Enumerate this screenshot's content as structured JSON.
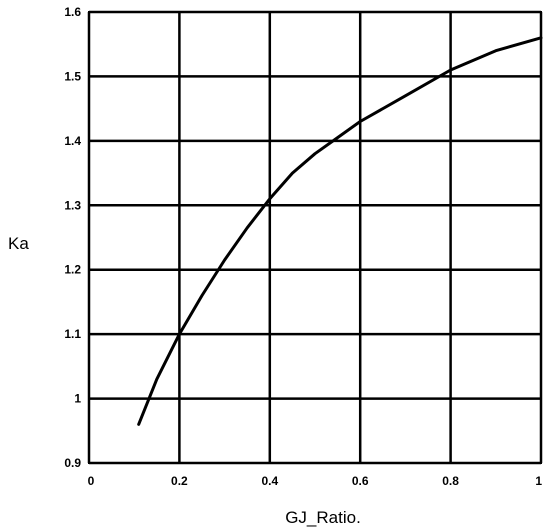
{
  "chart_data": {
    "type": "line",
    "title": "",
    "xlabel": "GJ_Ratio.",
    "ylabel": "Ka",
    "xlim": [
      0,
      1
    ],
    "ylim": [
      0.9,
      1.6
    ],
    "grid": true,
    "x_ticks": [
      0,
      0.2,
      0.4,
      0.6,
      0.8,
      1
    ],
    "x_tick_labels": [
      "0",
      "0.2",
      "0.4",
      "0.6",
      "0.8",
      "1"
    ],
    "y_ticks": [
      0.9,
      1,
      1.1,
      1.2,
      1.3,
      1.4,
      1.5,
      1.6
    ],
    "y_tick_labels": [
      "0.9",
      "1",
      "1.1",
      "1.2",
      "1.3",
      "1.4",
      "1.5",
      "1.6"
    ],
    "series": [
      {
        "x": [
          0.11,
          0.15,
          0.2,
          0.25,
          0.3,
          0.35,
          0.4,
          0.45,
          0.5,
          0.55,
          0.6,
          0.7,
          0.8,
          0.9,
          1.0
        ],
        "y": [
          0.96,
          1.03,
          1.1,
          1.16,
          1.215,
          1.265,
          1.31,
          1.35,
          1.38,
          1.405,
          1.43,
          1.47,
          1.51,
          1.54,
          1.56
        ]
      }
    ]
  }
}
